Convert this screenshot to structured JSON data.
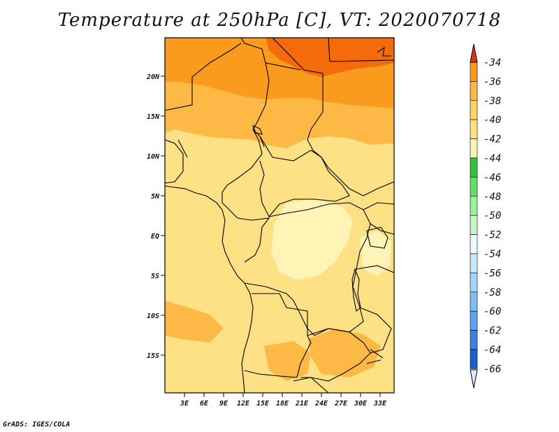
{
  "title": "Temperature at 250hPa [C], VT: 2020070718",
  "credit": "GrADS: IGES/COLA",
  "map": {
    "lat_labels": [
      "20N",
      "15N",
      "10N",
      "5N",
      "EQ",
      "5S",
      "10S",
      "15S"
    ],
    "lon_labels": [
      "3E",
      "6E",
      "9E",
      "12E",
      "15E",
      "18E",
      "21E",
      "24E",
      "27E",
      "30E",
      "33E"
    ],
    "band_colors": {
      "below_-42": "#fff3b5",
      "-42_to_-40": "#fee085",
      "-40_to_-38": "#fdb845",
      "-38_to_-36": "#fb9b1d",
      "-36_to_-34": "#f56a0a"
    }
  },
  "colorbar": {
    "levels": [
      "-34",
      "-36",
      "-38",
      "-40",
      "-42",
      "-44",
      "-46",
      "-48",
      "-50",
      "-52",
      "-54",
      "-56",
      "-58",
      "-60",
      "-62",
      "-64",
      "-66"
    ],
    "top_arrow_color": "#e8310a",
    "bottom_arrow_color": "#e6e6fa",
    "colors": [
      "#f56a0a",
      "#fb9b1d",
      "#fdb845",
      "#fed465",
      "#fee085",
      "#fff3b5",
      "#38c23c",
      "#68dc6a",
      "#9df09b",
      "#c7f7c7",
      "#ecfaff",
      "#c8e8ff",
      "#a6d4fb",
      "#82bdf5",
      "#5fa2ee",
      "#3c82e6",
      "#1c5fcf",
      "#0e3a9e",
      "#0b1670"
    ]
  }
}
